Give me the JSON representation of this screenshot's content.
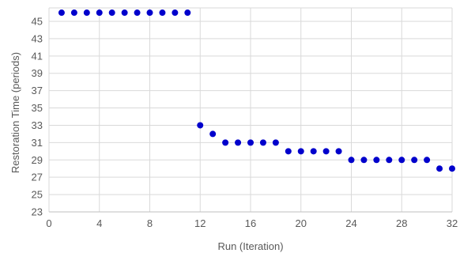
{
  "chart_data": {
    "type": "scatter",
    "title": "",
    "xlabel": "Run (Iteration)",
    "ylabel": "Restoration Time (periods)",
    "xlim": [
      0,
      32
    ],
    "ylim": [
      23,
      46
    ],
    "xticks": [
      0,
      4,
      8,
      12,
      16,
      20,
      24,
      28,
      32
    ],
    "yticks": [
      23,
      25,
      27,
      29,
      31,
      33,
      35,
      37,
      39,
      41,
      43,
      45
    ],
    "grid": true,
    "legend": "none",
    "marker_color": "#0000cc",
    "series": [
      {
        "x": [
          1,
          2,
          3,
          4,
          5,
          6,
          7,
          8,
          9,
          10,
          11,
          12,
          13,
          14,
          15,
          16,
          17,
          18,
          19,
          20,
          21,
          22,
          23,
          24,
          25,
          26,
          27,
          28,
          29,
          30,
          31,
          32
        ],
        "y": [
          46,
          46,
          46,
          46,
          46,
          46,
          46,
          46,
          46,
          46,
          46,
          33,
          32,
          31,
          31,
          31,
          31,
          31,
          30,
          30,
          30,
          30,
          30,
          29,
          29,
          29,
          29,
          29,
          29,
          29,
          28,
          28
        ]
      }
    ]
  }
}
